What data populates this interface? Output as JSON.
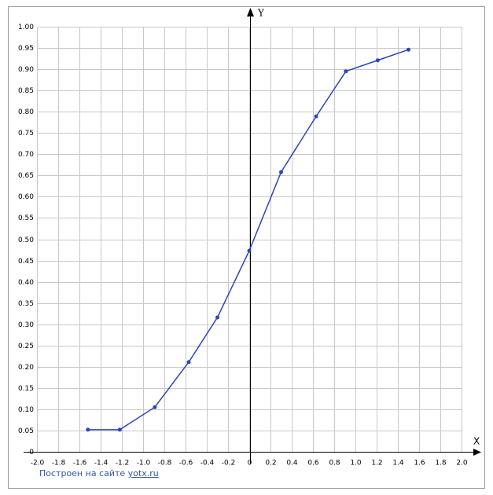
{
  "chart_data": {
    "type": "line",
    "x_label": "X",
    "y_label": "Y",
    "footer": {
      "text": "Построен на сайте",
      "link": "yotx.ru"
    },
    "series": [
      {
        "color": "#2b46b8",
        "x": [
          -1.52,
          -1.22,
          -0.89,
          -0.57,
          -0.3,
          0,
          0.3,
          0.63,
          0.91,
          1.21,
          1.5
        ],
        "values": [
          0.052,
          0.052,
          0.105,
          0.211,
          0.316,
          0.473,
          0.658,
          0.789,
          0.895,
          0.921,
          0.946
        ]
      }
    ],
    "xlim": [
      -2,
      2
    ],
    "ylim": [
      0,
      1
    ],
    "xticks": [
      {
        "value": -2,
        "label": "-2.0"
      },
      -1.8,
      -1.6,
      -1.4,
      -1.2,
      {
        "value": -1,
        "label": "-1.0"
      },
      -0.8,
      -0.6,
      -0.4,
      -0.2,
      0,
      0.2,
      0.4,
      0.6,
      0.8,
      {
        "value": 1,
        "label": "1.0"
      },
      1.2,
      1.4,
      1.6,
      1.8,
      {
        "value": 2,
        "label": "2.0"
      }
    ],
    "yticks": [
      0,
      0.05,
      {
        "value": 0.1,
        "label": "0.10"
      },
      0.15,
      {
        "value": 0.2,
        "label": "0.20"
      },
      0.25,
      {
        "value": 0.3,
        "label": "0.30"
      },
      0.35,
      {
        "value": 0.4,
        "label": "0.40"
      },
      0.45,
      {
        "value": 0.5,
        "label": "0.50"
      },
      0.55,
      {
        "value": 0.6,
        "label": "0.60"
      },
      0.65,
      {
        "value": 0.7,
        "label": "0.70"
      },
      0.75,
      {
        "value": 0.8,
        "label": "0.80"
      },
      0.85,
      {
        "value": 0.9,
        "label": "0.90"
      },
      0.95,
      {
        "value": 1,
        "label": "1.00"
      }
    ],
    "grid": true
  }
}
